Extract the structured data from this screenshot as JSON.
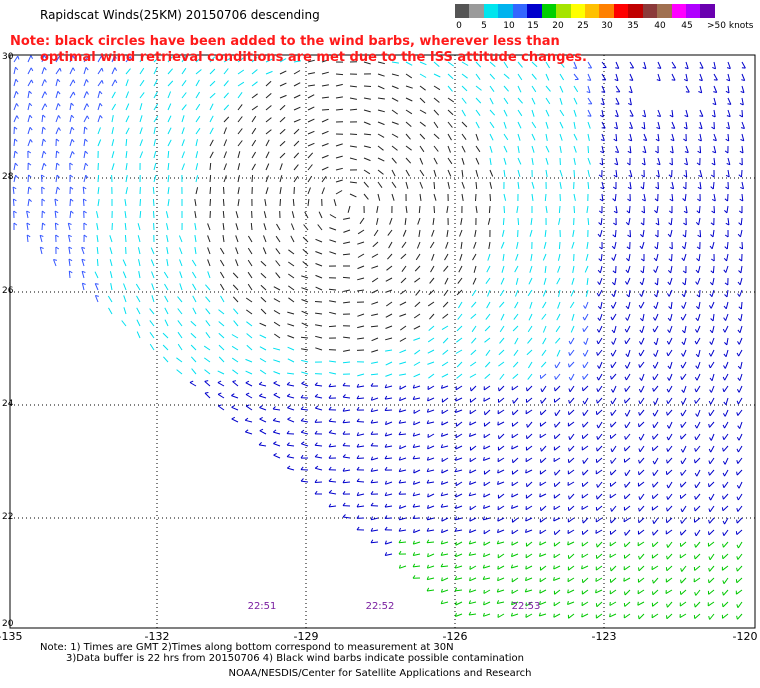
{
  "header": {
    "title": "Rapidscat Winds(25KM) 20150706 descending",
    "note_line1": "Note: black circles have been added to the wind barbs, wherever less than",
    "note_line2": "optimal wind retrieval conditions are met due to the ISS attitude changes."
  },
  "legend": {
    "colors": [
      "#555555",
      "#9a9a9a",
      "#00e5ee",
      "#00b3ee",
      "#3366ff",
      "#0000cc",
      "#00d000",
      "#a5e400",
      "#ffff00",
      "#ffc000",
      "#ff8000",
      "#ff0000",
      "#c00000",
      "#8b3a3a",
      "#a07050",
      "#ff00ff",
      "#b000ff",
      "#6a00b0"
    ],
    "labels": [
      "0",
      "5",
      "10",
      "15",
      "20",
      "25",
      "30",
      "35",
      "40",
      "45",
      ">50 knots"
    ]
  },
  "axes": {
    "x_labels": [
      "-135",
      "-132",
      "-129",
      "-126",
      "-123",
      "-120"
    ],
    "y_labels": [
      "30",
      "28",
      "26",
      "24",
      "22",
      "20"
    ]
  },
  "pass_times": [
    "22:51",
    "22:52",
    "22:53"
  ],
  "footer": {
    "line1": "Note: 1) Times are GMT 2)Times along bottom correspond to measurement at 30N",
    "line2": "3)Data buffer is 22 hrs from 20150706 4) Black wind barbs indicate possible contamination",
    "credit": "NOAA/NESDIS/Center for Satellite Applications and Research"
  }
}
